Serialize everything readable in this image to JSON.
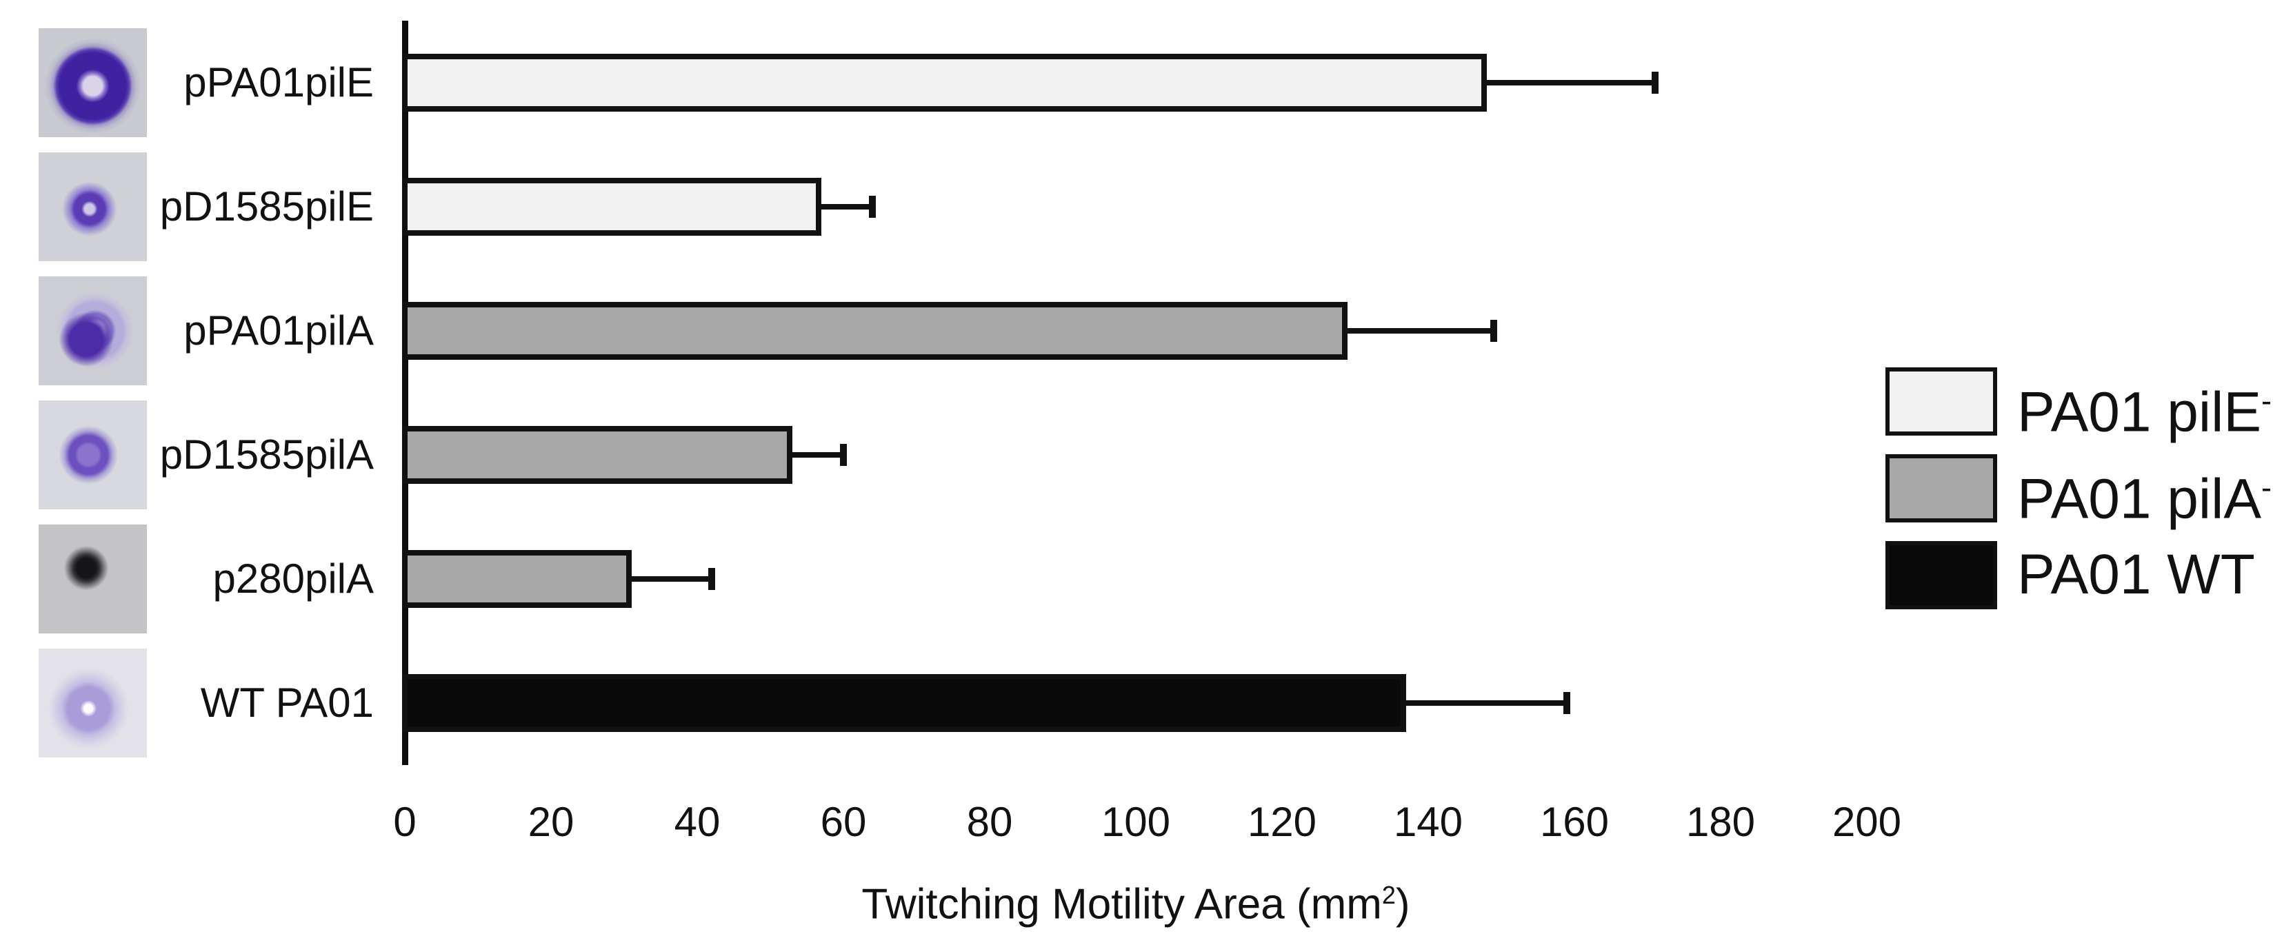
{
  "figure": {
    "background": "#ffffff",
    "axis_color": "#0d0d0d",
    "bar_border_color": "#111111",
    "text_color": "#111111"
  },
  "chart_data": {
    "type": "bar",
    "orientation": "horizontal",
    "title": "",
    "xlabel": "Twitching Motility Area (mm²)",
    "xlabel_parts": {
      "main": "Twitching Motility Area (mm",
      "sup": "2",
      "close": ")"
    },
    "xlim": [
      0,
      200
    ],
    "xticks": [
      0,
      20,
      40,
      60,
      80,
      100,
      120,
      140,
      160,
      180,
      200
    ],
    "grid": false,
    "legend_position": "right",
    "categories": [
      "pPA01pilE",
      "pD1585pilE",
      "pPA01pilA",
      "pD1585pilA",
      "p280pilA",
      "WT PA01"
    ],
    "rows": [
      {
        "category": "pPA01pilE",
        "value": 148,
        "error_plus": 23,
        "series": "PA01 pilE-",
        "art": "ring-dark",
        "thumb_name": "colony-image-ppa01pile"
      },
      {
        "category": "pD1585pilE",
        "value": 57,
        "error_plus": 7,
        "series": "PA01 pilE-",
        "art": "blob-small",
        "thumb_name": "colony-image-pd1585pile"
      },
      {
        "category": "pPA01pilA",
        "value": 129,
        "error_plus": 20,
        "series": "PA01 pilA-",
        "art": "spiral",
        "thumb_name": "colony-image-ppa01pila"
      },
      {
        "category": "pD1585pilA",
        "value": 53,
        "error_plus": 7,
        "series": "PA01 pilA-",
        "art": "blob-medium",
        "thumb_name": "colony-image-pd1585pila"
      },
      {
        "category": "p280pilA",
        "value": 31,
        "error_plus": 11,
        "series": "PA01 pilA-",
        "art": "blob-black",
        "thumb_name": "colony-image-p280pila"
      },
      {
        "category": "WT PA01",
        "value": 137,
        "error_plus": 22,
        "series": "PA01 WT",
        "art": "blob-faint",
        "thumb_name": "colony-image-wt-pa01"
      }
    ],
    "series": [
      {
        "key": "PA01 pilE-",
        "label_main": "PA01 pilE",
        "label_sup": "-",
        "color": "#f1f1f1"
      },
      {
        "key": "PA01 pilA-",
        "label_main": "PA01 pilA",
        "label_sup": "-",
        "color": "#a8a8a8"
      },
      {
        "key": "PA01 WT",
        "label_main": "PA01 WT",
        "label_sup": "",
        "color": "#0a0a0a"
      }
    ]
  }
}
